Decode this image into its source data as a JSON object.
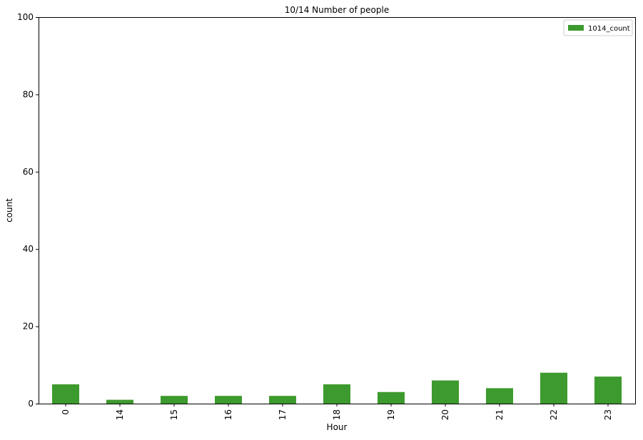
{
  "chart_data": {
    "type": "bar",
    "title": "10/14 Number of people",
    "xlabel": "Hour",
    "ylabel": "count",
    "categories": [
      "0",
      "14",
      "15",
      "16",
      "17",
      "18",
      "19",
      "20",
      "21",
      "22",
      "23"
    ],
    "series": [
      {
        "name": "1014_count",
        "values": [
          5,
          1,
          2,
          2,
          2,
          5,
          3,
          6,
          4,
          8,
          7
        ],
        "color": "#3d9a2e"
      }
    ],
    "ylim": [
      0,
      100
    ],
    "yticks": [
      0,
      20,
      40,
      60,
      80,
      100
    ],
    "grid": false,
    "legend_position": "top-right"
  }
}
